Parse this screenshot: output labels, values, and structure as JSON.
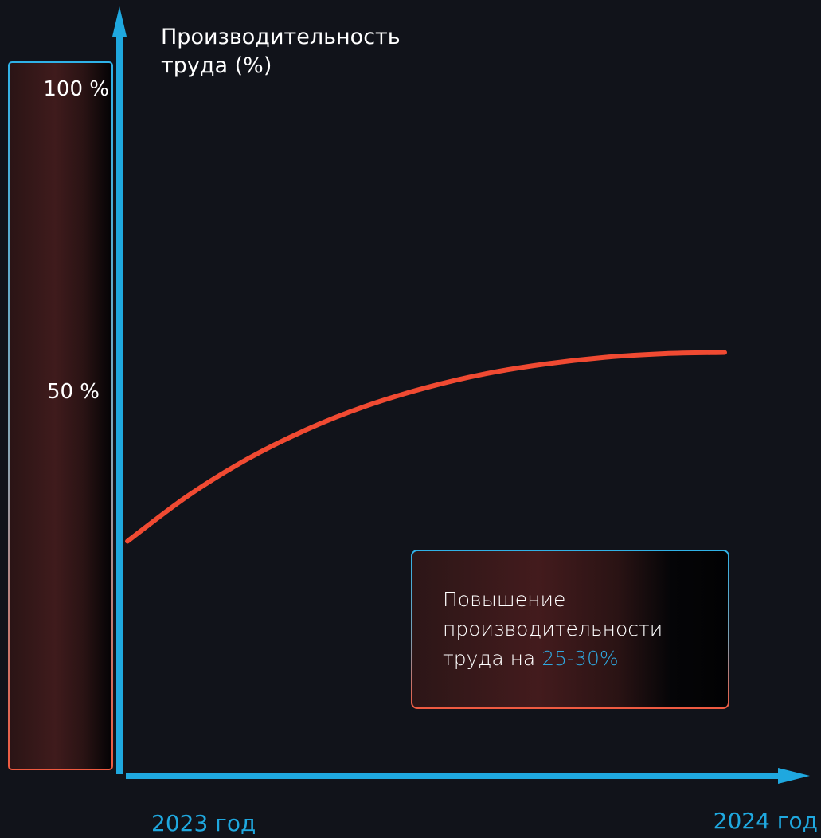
{
  "chart_data": {
    "type": "line",
    "title": "",
    "ylabel_lines": [
      "Производительность",
      "труда (%)"
    ],
    "xlabel": "",
    "x_tick_labels": [
      "2023 год",
      "2024 год"
    ],
    "y_scale_labels": [
      "100 %",
      "50 %"
    ],
    "ylim": [
      0,
      100
    ],
    "series": [
      {
        "x": [
          0,
          0.1,
          0.2,
          0.3,
          0.4,
          0.5,
          0.6,
          0.7,
          0.8,
          0.9,
          1.0
        ],
        "values": [
          25,
          32.4,
          38.5,
          43.4,
          47.3,
          50.3,
          52.6,
          54.2,
          55.3,
          55.9,
          56.1
        ]
      }
    ],
    "grid": false,
    "legend": "none"
  },
  "callout": {
    "line1": "Повышение",
    "line2": "производительности",
    "line3_prefix": "труда на ",
    "line3_highlight": "25-30%"
  },
  "colors": {
    "background": "#11131a",
    "axis": "#1fa8df",
    "line": "#f04a32",
    "highlight": "#2fa8e0"
  }
}
